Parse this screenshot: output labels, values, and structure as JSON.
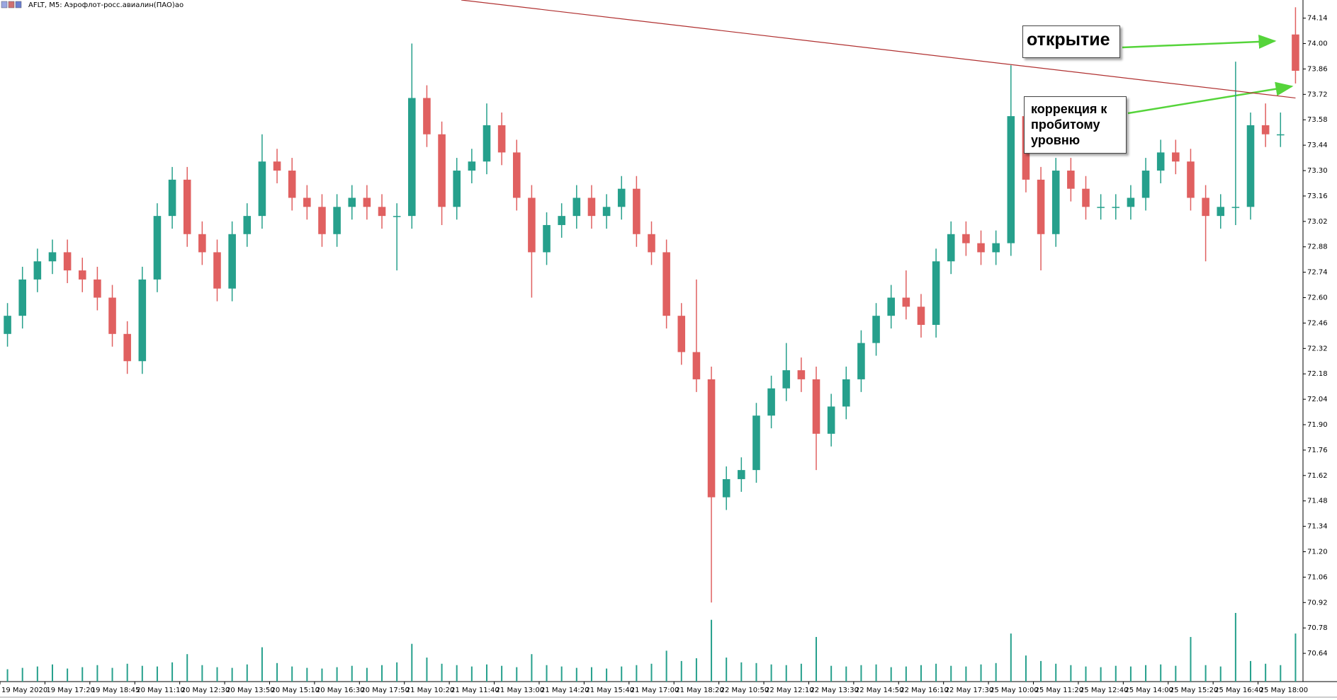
{
  "chart_data": {
    "type": "candlestick",
    "title": "AFLT, M5:  Аэрофлот-росс.авиалин(ПАО)ао",
    "categories": [
      "19 May 2020",
      null,
      null,
      "19 May 17:20",
      null,
      null,
      "19 May 18:45",
      null,
      null,
      "20 May 11:10",
      null,
      null,
      "20 May 12:30",
      null,
      null,
      "20 May 13:50",
      null,
      null,
      "20 May 15:10",
      null,
      null,
      "20 May 16:30",
      null,
      null,
      "20 May 17:50",
      null,
      null,
      "21 May 10:20",
      null,
      null,
      "21 May 11:40",
      null,
      null,
      "21 May 13:00",
      null,
      null,
      "21 May 14:20",
      null,
      null,
      "21 May 15:40",
      null,
      null,
      "21 May 17:00",
      null,
      null,
      "21 May 18:20",
      null,
      null,
      "22 May 10:50",
      null,
      null,
      "22 May 12:10",
      null,
      null,
      "22 May 13:30",
      null,
      null,
      "22 May 14:50",
      null,
      null,
      "22 May 16:10",
      null,
      null,
      "22 May 17:30",
      null,
      null,
      "25 May 10:00",
      null,
      null,
      "25 May 11:20",
      null,
      null,
      "25 May 12:40",
      null,
      null,
      "25 May 14:00",
      null,
      null,
      "25 May 15:20",
      null,
      null,
      "25 May 16:40",
      null,
      null,
      "25 May 18:00",
      null,
      null
    ],
    "open": [
      72.4,
      72.5,
      72.7,
      72.8,
      72.85,
      72.75,
      72.7,
      72.6,
      72.4,
      72.25,
      72.7,
      73.05,
      73.25,
      72.95,
      72.85,
      72.65,
      72.95,
      73.05,
      73.35,
      73.3,
      73.15,
      73.1,
      72.95,
      73.1,
      73.15,
      73.1,
      73.05,
      73.05,
      73.7,
      73.5,
      73.1,
      73.3,
      73.35,
      73.55,
      73.4,
      73.15,
      72.85,
      73,
      73.05,
      73.15,
      73.05,
      73.1,
      73.2,
      72.95,
      72.85,
      72.5,
      72.3,
      72.15,
      71.5,
      71.6,
      71.65,
      71.95,
      72.1,
      72.2,
      72.15,
      71.85,
      72,
      72.15,
      72.35,
      72.5,
      72.6,
      72.55,
      72.45,
      72.8,
      72.95,
      72.9,
      72.85,
      72.9,
      73.6,
      73.25,
      72.95,
      73.3,
      73.2,
      73.1,
      73.1,
      73.1,
      73.15,
      73.3,
      73.4,
      73.35,
      73.15,
      73.05,
      73.1,
      73.1,
      73.55,
      73.5,
      74.05
    ],
    "high": [
      72.57,
      72.77,
      72.87,
      72.92,
      72.92,
      72.82,
      72.77,
      72.67,
      72.47,
      72.77,
      73.12,
      73.32,
      73.32,
      73.02,
      72.92,
      73.02,
      73.12,
      73.5,
      73.42,
      73.37,
      73.22,
      73.17,
      73.17,
      73.22,
      73.22,
      73.17,
      73.12,
      74,
      73.77,
      73.57,
      73.37,
      73.42,
      73.67,
      73.62,
      73.47,
      73.22,
      73.07,
      73.12,
      73.22,
      73.22,
      73.17,
      73.27,
      73.27,
      73.02,
      72.92,
      72.57,
      72.7,
      72.22,
      71.67,
      71.72,
      72.02,
      72.17,
      72.35,
      72.27,
      72.22,
      72.07,
      72.22,
      72.42,
      72.57,
      72.67,
      72.75,
      72.62,
      72.87,
      73.02,
      73.02,
      72.97,
      72.97,
      73.88,
      73.67,
      73.32,
      73.37,
      73.37,
      73.27,
      73.17,
      73.17,
      73.22,
      73.37,
      73.47,
      73.47,
      73.42,
      73.22,
      73.17,
      73.9,
      73.62,
      73.67,
      73.62,
      74.2
    ],
    "low": [
      72.33,
      72.43,
      72.63,
      72.73,
      72.68,
      72.63,
      72.53,
      72.33,
      72.18,
      72.18,
      72.63,
      72.98,
      72.88,
      72.78,
      72.58,
      72.58,
      72.88,
      72.98,
      73.23,
      73.08,
      73.03,
      72.88,
      72.88,
      73.03,
      73.03,
      72.98,
      72.75,
      72.98,
      73.43,
      73,
      73.03,
      73.23,
      73.28,
      73.33,
      73.08,
      72.6,
      72.78,
      72.93,
      72.98,
      72.98,
      72.98,
      73.03,
      72.88,
      72.78,
      72.43,
      72.23,
      72.08,
      70.92,
      71.43,
      71.53,
      71.58,
      71.88,
      72.03,
      72.08,
      71.65,
      71.78,
      71.93,
      72.08,
      72.28,
      72.43,
      72.48,
      72.38,
      72.38,
      72.73,
      72.83,
      72.78,
      72.78,
      72.83,
      73.18,
      72.75,
      72.88,
      73.13,
      73.03,
      73.03,
      73.03,
      73.03,
      73.08,
      73.23,
      73.28,
      73.08,
      72.8,
      72.98,
      73,
      73.03,
      73.43,
      73.43,
      73.78
    ],
    "close": [
      72.5,
      72.7,
      72.8,
      72.85,
      72.75,
      72.7,
      72.6,
      72.4,
      72.25,
      72.7,
      73.05,
      73.25,
      72.95,
      72.85,
      72.65,
      72.95,
      73.05,
      73.35,
      73.3,
      73.15,
      73.1,
      72.95,
      73.1,
      73.15,
      73.1,
      73.05,
      73.05,
      73.7,
      73.5,
      73.1,
      73.3,
      73.35,
      73.55,
      73.4,
      73.15,
      72.85,
      73,
      73.05,
      73.15,
      73.05,
      73.1,
      73.2,
      72.95,
      72.85,
      72.5,
      72.3,
      72.15,
      71.5,
      71.6,
      71.65,
      71.95,
      72.1,
      72.2,
      72.15,
      71.85,
      72,
      72.15,
      72.35,
      72.5,
      72.6,
      72.55,
      72.45,
      72.8,
      72.95,
      72.9,
      72.85,
      72.9,
      73.6,
      73.25,
      72.95,
      73.3,
      73.2,
      73.1,
      73.1,
      73.1,
      73.15,
      73.3,
      73.4,
      73.35,
      73.15,
      73.05,
      73.1,
      73.1,
      73.55,
      73.5,
      73.5,
      73.85
    ],
    "volume": [
      18,
      20,
      22,
      25,
      19,
      21,
      24,
      20,
      26,
      23,
      22,
      28,
      40,
      24,
      21,
      20,
      25,
      50,
      27,
      22,
      20,
      19,
      21,
      23,
      20,
      24,
      28,
      55,
      35,
      26,
      24,
      22,
      25,
      23,
      21,
      40,
      24,
      22,
      20,
      21,
      19,
      22,
      24,
      26,
      45,
      30,
      34,
      90,
      35,
      28,
      27,
      25,
      24,
      26,
      65,
      23,
      22,
      24,
      25,
      21,
      22,
      24,
      26,
      23,
      22,
      25,
      27,
      70,
      38,
      30,
      26,
      24,
      22,
      21,
      23,
      22,
      24,
      25,
      23,
      65,
      24,
      22,
      100,
      30,
      26,
      24,
      70
    ],
    "volume_lim": [
      0,
      100
    ],
    "ylim": [
      70.5,
      74.24
    ],
    "yticks": [
      74.14,
      {
        "value": 74,
        "label": "74.00"
      },
      73.86,
      73.72,
      73.58,
      73.44,
      {
        "value": 73.3,
        "label": "73.30"
      },
      73.16,
      73.02,
      72.88,
      72.74,
      {
        "value": 72.6,
        "label": "72.60"
      },
      72.46,
      72.32,
      72.18,
      72.04,
      {
        "value": 71.9,
        "label": "71.90"
      },
      71.76,
      71.62,
      71.48,
      71.34,
      {
        "value": 71.2,
        "label": "71.20"
      },
      71.06,
      70.92,
      70.78,
      70.64
    ],
    "up_color": "#26a08c",
    "down_color": "#e06060",
    "volume_color": "#26a08c",
    "trendline": {
      "x": [
        30.8,
        86.5
      ],
      "y": [
        74.24,
        73.7
      ],
      "color": "#b03030"
    },
    "annotations": [
      {
        "text": "открытие"
      },
      {
        "text": "коррекция к пробитому уровню"
      }
    ]
  }
}
